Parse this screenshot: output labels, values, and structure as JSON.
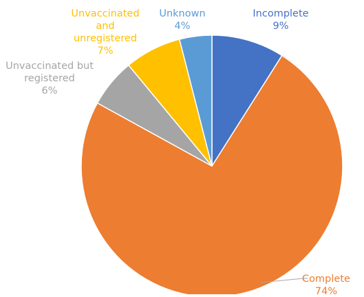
{
  "chart_data": {
    "type": "pie",
    "title": "",
    "slices": [
      {
        "label_lines": [
          "Incomplete"
        ],
        "value": 9,
        "value_label": "9%",
        "color": "#4472c4"
      },
      {
        "label_lines": [
          "Complete"
        ],
        "value": 74,
        "value_label": "74%",
        "color": "#ed7d31"
      },
      {
        "label_lines": [
          "Unvaccinated but",
          "registered"
        ],
        "value": 6,
        "value_label": "6%",
        "color": "#a5a5a5"
      },
      {
        "label_lines": [
          "Unvaccinated",
          "and",
          "unregistered"
        ],
        "value": 7,
        "value_label": "7%",
        "color": "#ffc000"
      },
      {
        "label_lines": [
          "Unknown"
        ],
        "value": 4,
        "value_label": "4%",
        "color": "#5b9bd5"
      }
    ],
    "start_angle_deg": 0,
    "direction": "clockwise",
    "legend": "none",
    "data_labels": "outside"
  }
}
